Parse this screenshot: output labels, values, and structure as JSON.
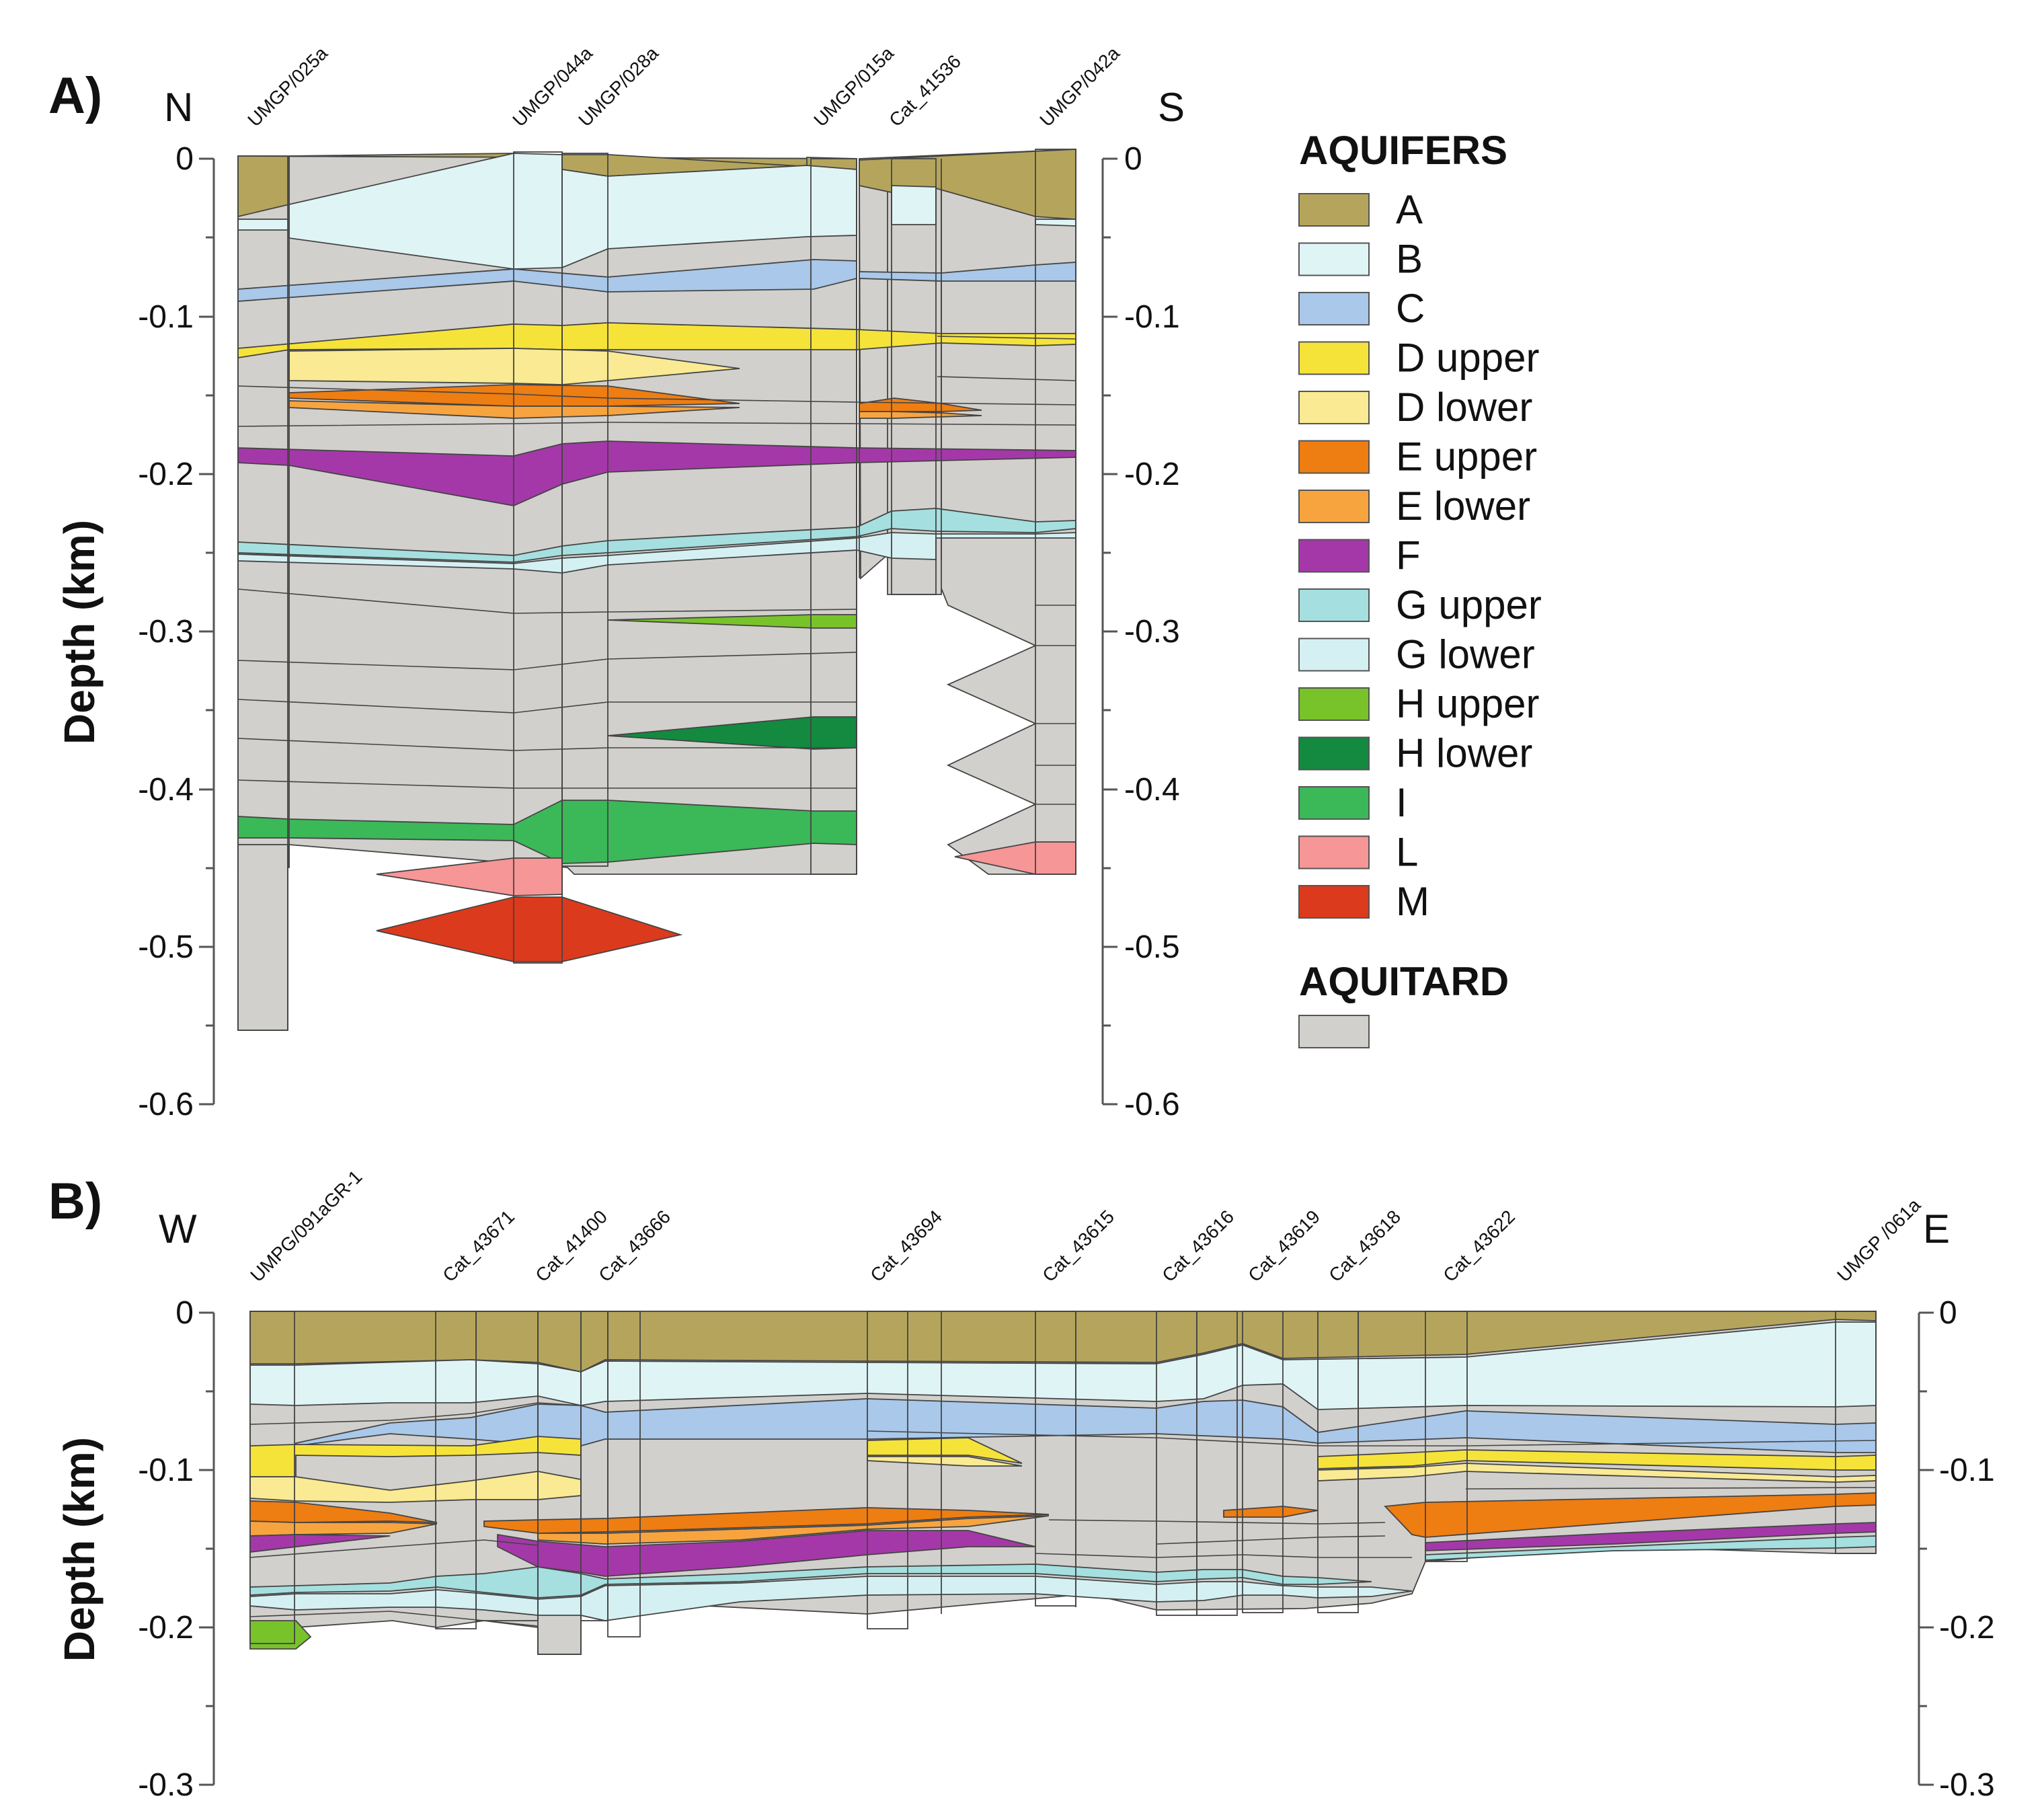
{
  "panels": [
    {
      "id": "A",
      "label": "A)",
      "left_direction": "N",
      "right_direction": "S",
      "ylabel": "Depth (km)",
      "ylim": [
        -0.6,
        0
      ],
      "y_ticks": [
        "0",
        "-0.1",
        "-0.2",
        "-0.3",
        "-0.4",
        "-0.5",
        "-0.6"
      ],
      "wells": [
        "UMGP/025a",
        "UMGP/044a",
        "UMGP/028a",
        "UMGP/015a",
        "Cat_41536",
        "UMGP/042a"
      ]
    },
    {
      "id": "B",
      "label": "B)",
      "left_direction": "W",
      "right_direction": "E",
      "ylabel": "Depth (km)",
      "ylim": [
        -0.3,
        0
      ],
      "y_ticks": [
        "0",
        "-0.1",
        "-0.2",
        "-0.3"
      ],
      "wells": [
        "UMPG/091aGR-1",
        "Cat_43671",
        "Cat_41400",
        "Cat_43666",
        "Cat_43694",
        "Cat_43615",
        "Cat_43616",
        "Cat_43619",
        "Cat_43618",
        "Cat_43622",
        "UMGP /061a"
      ]
    }
  ],
  "legend": {
    "aquifers_title": "AQUIFERS",
    "aquitard_title": "AQUITARD",
    "aquifers": [
      {
        "name": "A",
        "color": "#b5a55c"
      },
      {
        "name": "B",
        "color": "#dff4f5"
      },
      {
        "name": "C",
        "color": "#a9c8ea"
      },
      {
        "name": "D upper",
        "color": "#f6e33a"
      },
      {
        "name": "D lower",
        "color": "#f9ea93"
      },
      {
        "name": "E upper",
        "color": "#ee7d12"
      },
      {
        "name": "E lower",
        "color": "#f7a43f"
      },
      {
        "name": "F",
        "color": "#a538a9"
      },
      {
        "name": "G upper",
        "color": "#a6dfdf"
      },
      {
        "name": "G lower",
        "color": "#d4f0f2"
      },
      {
        "name": "H upper",
        "color": "#78c32a"
      },
      {
        "name": "H lower",
        "color": "#138a40"
      },
      {
        "name": "I",
        "color": "#3bb858"
      },
      {
        "name": "L",
        "color": "#f69696"
      },
      {
        "name": "M",
        "color": "#dc3a1c"
      }
    ],
    "aquitard_color": "#d2d0cc"
  }
}
